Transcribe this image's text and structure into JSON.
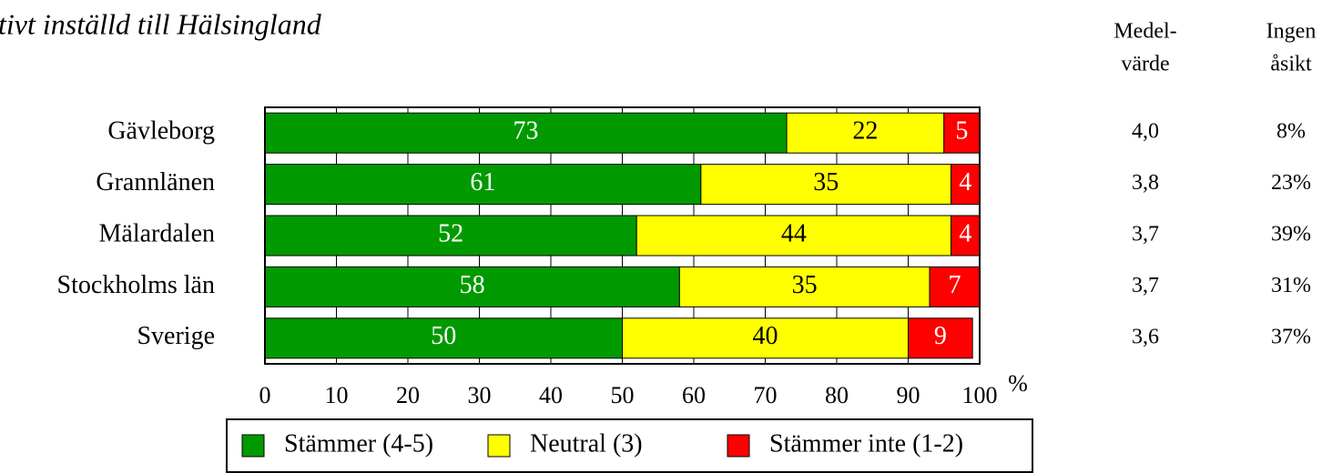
{
  "chart_data": {
    "type": "stacked_barh",
    "title": "tivt inställd till Hälsingland",
    "categories": [
      "Gävleborg",
      "Grannlänen",
      "Mälardalen",
      "Stockholms län",
      "Sverige"
    ],
    "series": [
      {
        "name": "Stämmer (4-5)",
        "color": "#009a00",
        "label_color": "#ffffff",
        "values": [
          73,
          61,
          52,
          58,
          50
        ]
      },
      {
        "name": "Neutral (3)",
        "color": "#ffff00",
        "label_color": "#000000",
        "values": [
          22,
          35,
          44,
          35,
          40
        ]
      },
      {
        "name": "Stämmer inte (1-2)",
        "color": "#ff0000",
        "label_color": "#ffffff",
        "values": [
          5,
          4,
          4,
          7,
          9
        ]
      }
    ],
    "xlim": [
      0,
      100
    ],
    "xticks": [
      0,
      10,
      20,
      30,
      40,
      50,
      60,
      70,
      80,
      90,
      100
    ],
    "x_unit": "%",
    "grid": true,
    "columns": [
      {
        "header": [
          "Medel-",
          "värde"
        ],
        "values": [
          "4,0",
          "3,8",
          "3,7",
          "3,7",
          "3,6"
        ]
      },
      {
        "header": [
          "Ingen",
          "åsikt"
        ],
        "values": [
          "8%",
          "23%",
          "39%",
          "31%",
          "37%"
        ]
      }
    ]
  }
}
